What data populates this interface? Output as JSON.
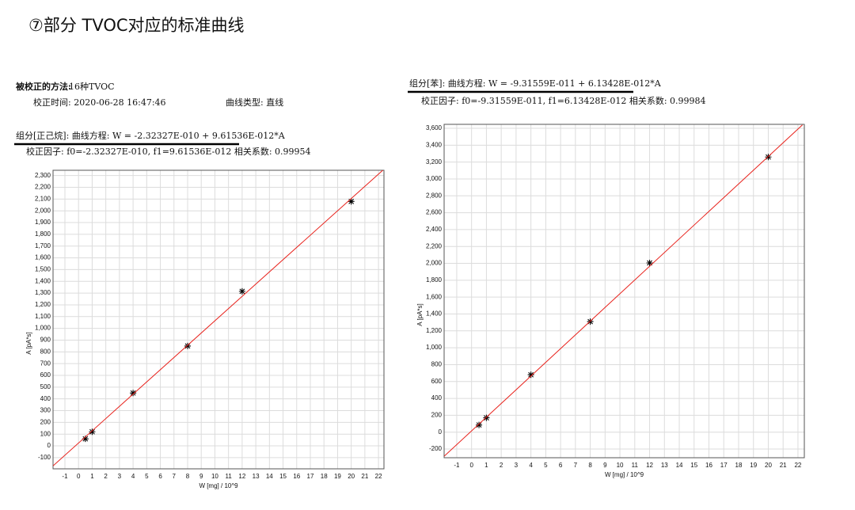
{
  "title": "⑦部分 TVOC对应的标准曲线",
  "chart_data": [
    {
      "type": "scatter",
      "method_label": "被校正的方法:",
      "method": "16种TVOC",
      "calibration_time": "校正时间: 2020-06-28 16:47:46",
      "curve_type": "曲线类型: 直线",
      "equation": "组分[正己烷]:  曲线方程: W = -2.32327E-010 + 9.61536E-012*A",
      "factors": "校正因子: f0=-2.32327E-010, f1=9.61536E-012  相关系数: 0.99954",
      "x_label": "W [mg] / 10^9",
      "y_label": "A [pA*s]",
      "xlim": [
        -1.87,
        22.4
      ],
      "ylim": [
        -195,
        2345
      ],
      "grid": true,
      "xticks": [
        -1,
        0,
        1,
        2,
        3,
        4,
        5,
        6,
        7,
        8,
        9,
        10,
        11,
        12,
        13,
        14,
        15,
        16,
        17,
        18,
        19,
        20,
        21,
        22
      ],
      "yticks": [
        -100,
        0,
        100,
        200,
        300,
        400,
        500,
        600,
        700,
        800,
        900,
        {
          "value": 1000,
          "label": "1,000"
        },
        {
          "value": 1100,
          "label": "1,100"
        },
        {
          "value": 1200,
          "label": "1,200"
        },
        {
          "value": 1300,
          "label": "1,300"
        },
        {
          "value": 1400,
          "label": "1,400"
        },
        {
          "value": 1500,
          "label": "1,500"
        },
        {
          "value": 1600,
          "label": "1,600"
        },
        {
          "value": 1700,
          "label": "1,700"
        },
        {
          "value": 1800,
          "label": "1,800"
        },
        {
          "value": 1900,
          "label": "1,900"
        },
        {
          "value": 2000,
          "label": "2,000"
        },
        {
          "value": 2100,
          "label": "2,100"
        },
        {
          "value": 2200,
          "label": "2,200"
        },
        {
          "value": 2300,
          "label": "2,300"
        }
      ],
      "series": [
        {
          "type": "scatter",
          "color": "#000000",
          "x": [
            0.5,
            1,
            4,
            8,
            12,
            20
          ],
          "values": [
            60,
            120,
            450,
            850,
            1315,
            2080
          ]
        },
        {
          "type": "line",
          "color": "#e8201a",
          "x": [
            -1.87,
            22.4
          ],
          "values": [
            -170,
            2354
          ]
        }
      ]
    },
    {
      "type": "scatter",
      "equation": "组分[苯]:  曲线方程: W = -9.31559E-011 + 6.13428E-012*A",
      "factors": "校正因子: f0=-9.31559E-011, f1=6.13428E-012  相关系数: 0.99984",
      "x_label": "W [mg] / 10^9",
      "y_label": "A [pA*s]",
      "xlim": [
        -1.85,
        22.43
      ],
      "ylim": [
        -303,
        3647
      ],
      "grid": true,
      "xticks": [
        -1,
        0,
        1,
        2,
        3,
        4,
        5,
        6,
        7,
        8,
        9,
        10,
        11,
        12,
        13,
        14,
        15,
        16,
        17,
        18,
        19,
        20,
        21,
        22
      ],
      "yticks": [
        -200,
        0,
        200,
        400,
        600,
        800,
        {
          "value": 1000,
          "label": "1,000"
        },
        {
          "value": 1200,
          "label": "1,200"
        },
        {
          "value": 1400,
          "label": "1,400"
        },
        {
          "value": 1600,
          "label": "1,600"
        },
        {
          "value": 1800,
          "label": "1,800"
        },
        {
          "value": 2000,
          "label": "2,000"
        },
        {
          "value": 2200,
          "label": "2,200"
        },
        {
          "value": 2400,
          "label": "2,400"
        },
        {
          "value": 2600,
          "label": "2,600"
        },
        {
          "value": 2800,
          "label": "2,800"
        },
        {
          "value": 3000,
          "label": "3,000"
        },
        {
          "value": 3200,
          "label": "3,200"
        },
        {
          "value": 3400,
          "label": "3,400"
        },
        {
          "value": 3600,
          "label": "3,600"
        }
      ],
      "series": [
        {
          "type": "scatter",
          "color": "#000000",
          "x": [
            0.5,
            1,
            4,
            8,
            12,
            20
          ],
          "values": [
            85,
            170,
            680,
            1310,
            2005,
            3260
          ]
        },
        {
          "type": "line",
          "color": "#e8201a",
          "x": [
            -1.85,
            22.3
          ],
          "values": [
            -286,
            3640
          ]
        }
      ]
    }
  ]
}
